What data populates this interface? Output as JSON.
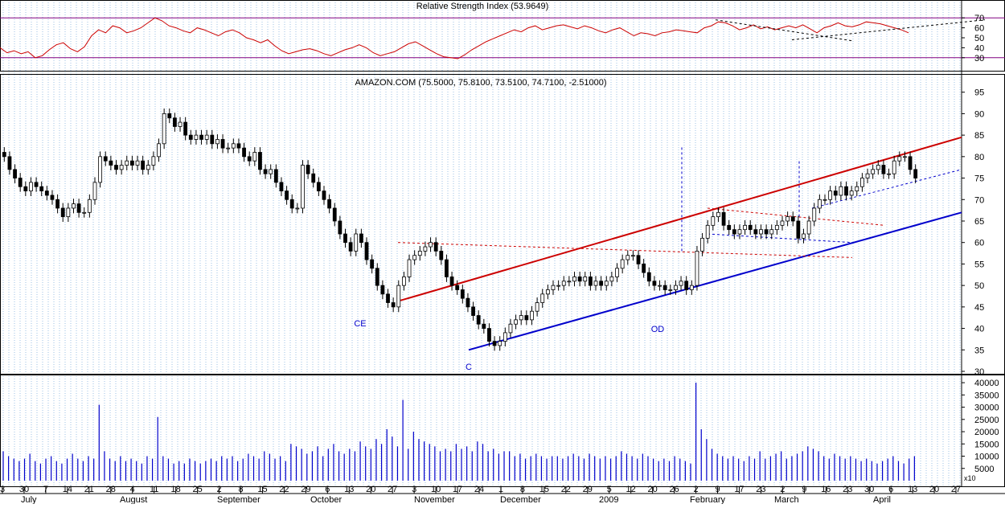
{
  "chart_data": [
    {
      "type": "line",
      "title": "Relative Strength Index (53.9649)",
      "ylim": [
        25,
        75
      ],
      "y_ticks": [
        "70",
        "60",
        "50",
        "40",
        "30"
      ],
      "reference_lines": [
        70,
        30
      ],
      "series": [
        {
          "values": [
            40,
            35,
            37,
            34,
            36,
            30,
            32,
            38,
            43,
            45,
            39,
            36,
            41,
            52,
            58,
            55,
            62,
            60,
            55,
            57,
            60,
            65,
            70,
            67,
            62,
            60,
            57,
            55,
            60,
            58,
            55,
            52,
            56,
            58,
            55,
            50,
            48,
            45,
            48,
            42,
            37,
            34,
            36,
            38,
            39,
            37,
            34,
            32,
            35,
            38,
            40,
            43,
            40,
            35,
            32,
            34,
            36,
            40,
            44,
            46,
            42,
            38,
            34,
            31,
            30,
            29,
            33,
            38,
            42,
            46,
            49,
            52,
            55,
            58,
            56,
            60,
            62,
            58,
            60,
            62,
            63,
            61,
            59,
            62,
            60,
            57,
            55,
            58,
            60,
            56,
            52,
            55,
            54,
            52,
            55,
            56,
            58,
            57,
            56,
            55,
            60,
            62,
            66,
            65,
            62,
            58,
            60,
            63,
            59,
            61,
            58,
            60,
            62,
            60,
            63,
            59,
            55,
            60,
            62,
            65,
            62,
            61,
            63,
            66,
            65,
            64,
            62,
            60,
            58,
            55
          ]
        }
      ],
      "grid": true
    },
    {
      "type": "candlestick",
      "title": "AMAZON.COM (75.5000, 75.8100, 73.5100, 74.7100, -2.51000)",
      "ylim": [
        30,
        97
      ],
      "y_ticks": [
        "95",
        "90",
        "85",
        "80",
        "75",
        "70",
        "65",
        "60",
        "55",
        "50",
        "45",
        "40",
        "35",
        "30"
      ],
      "annotations": [
        "CE",
        "C",
        "OD"
      ],
      "trendlines": [
        {
          "color": "#cc0000",
          "from": [
            "Oct 27",
            46.5
          ],
          "to": [
            "Apr 27",
            84.5
          ]
        },
        {
          "color": "#0000cc",
          "from": [
            "Nov 19",
            35
          ],
          "to": [
            "Apr 27",
            67
          ]
        }
      ],
      "close": [
        80,
        77,
        75,
        73,
        72,
        74,
        73,
        72,
        71,
        70,
        68,
        66,
        68,
        69,
        67,
        67,
        70,
        74,
        80,
        79,
        78,
        77,
        78,
        79,
        78,
        79,
        77,
        78,
        80,
        83,
        90,
        89,
        87,
        88,
        85,
        84,
        85,
        84,
        85,
        83,
        84,
        82,
        82,
        83,
        82,
        80,
        79,
        81,
        77,
        76,
        77,
        74,
        72,
        70,
        68,
        68,
        78,
        76,
        74,
        72,
        70,
        68,
        65,
        62,
        60,
        58,
        62,
        60,
        56,
        54,
        50,
        48,
        46,
        45,
        50,
        52,
        56,
        57,
        58,
        59,
        60,
        58,
        56,
        52,
        50,
        49,
        47,
        45,
        43,
        41,
        40,
        37,
        36,
        37,
        39,
        41,
        42,
        43,
        42,
        44,
        46,
        48,
        49,
        50,
        50,
        51,
        51,
        52,
        51,
        52,
        50,
        51,
        50,
        51,
        52,
        54,
        56,
        57,
        57,
        55,
        53,
        51,
        50,
        50,
        49,
        49,
        50,
        51,
        49,
        50,
        58,
        61,
        64,
        66,
        67,
        64,
        63,
        62,
        63,
        64,
        63,
        62,
        63,
        62,
        63,
        64,
        65,
        66,
        65,
        61,
        62,
        65,
        68,
        70,
        70,
        72,
        71,
        73,
        71,
        72,
        73,
        75,
        76,
        77,
        78,
        76,
        76,
        79,
        80,
        80,
        77,
        75
      ]
    },
    {
      "type": "bar",
      "title": "",
      "ylim": [
        0,
        42000
      ],
      "y_ticks": [
        "40000",
        "35000",
        "30000",
        "25000",
        "20000",
        "15000",
        "10000",
        "5000"
      ],
      "y_unit": "x10",
      "values": [
        12000,
        10000,
        9000,
        8000,
        9000,
        11000,
        8000,
        7000,
        9000,
        10000,
        8000,
        7000,
        9000,
        11000,
        9000,
        8000,
        10000,
        9000,
        31000,
        12000,
        9000,
        8000,
        10000,
        8000,
        9000,
        8000,
        7000,
        10000,
        9000,
        26000,
        10000,
        9000,
        7000,
        8000,
        7000,
        9000,
        8000,
        7000,
        8000,
        9000,
        8000,
        10000,
        9000,
        10000,
        8000,
        9000,
        11000,
        10000,
        9000,
        12000,
        11000,
        9000,
        10000,
        8000,
        15000,
        14000,
        13000,
        11000,
        12000,
        14000,
        10000,
        13000,
        15000,
        12000,
        11000,
        13000,
        12000,
        16000,
        14000,
        13000,
        17000,
        15000,
        21000,
        18000,
        14000,
        33000,
        13000,
        20000,
        17000,
        16000,
        15000,
        14000,
        12000,
        13000,
        12000,
        15000,
        13000,
        14000,
        12000,
        16000,
        15000,
        12000,
        13000,
        11000,
        12000,
        12000,
        10000,
        11000,
        9000,
        10000,
        11000,
        10000,
        9000,
        10000,
        10000,
        9000,
        10000,
        11000,
        10000,
        9000,
        11000,
        10000,
        9000,
        10000,
        9000,
        10000,
        12000,
        11000,
        10000,
        9000,
        11000,
        10000,
        9000,
        8000,
        9000,
        8000,
        10000,
        9000,
        8000,
        7000,
        40000,
        21000,
        17000,
        13000,
        11000,
        10000,
        9000,
        10000,
        9000,
        8000,
        10000,
        9000,
        12000,
        9000,
        10000,
        11000,
        12000,
        9000,
        10000,
        11000,
        12000,
        14000,
        13000,
        12000,
        10000,
        9000,
        11000,
        10000,
        9000,
        10000,
        9000,
        8000,
        9000,
        8000,
        7000,
        8000,
        9000,
        10000,
        8000,
        7000,
        9000,
        10000
      ],
      "x_tick_labels": [
        "3",
        "30",
        "7",
        "14",
        "21",
        "28",
        "4",
        "11",
        "18",
        "25",
        "2",
        "8",
        "15",
        "22",
        "29",
        "6",
        "13",
        "20",
        "27",
        "3",
        "10",
        "17",
        "24",
        "1",
        "8",
        "15",
        "22",
        "29",
        "5",
        "12",
        "20",
        "26",
        "2",
        "9",
        "17",
        "23",
        "2",
        "9",
        "16",
        "23",
        "30",
        "6",
        "13",
        "20",
        "27"
      ],
      "month_labels": [
        "July",
        "August",
        "September",
        "October",
        "November",
        "December",
        "2009",
        "February",
        "March",
        "April"
      ]
    }
  ]
}
